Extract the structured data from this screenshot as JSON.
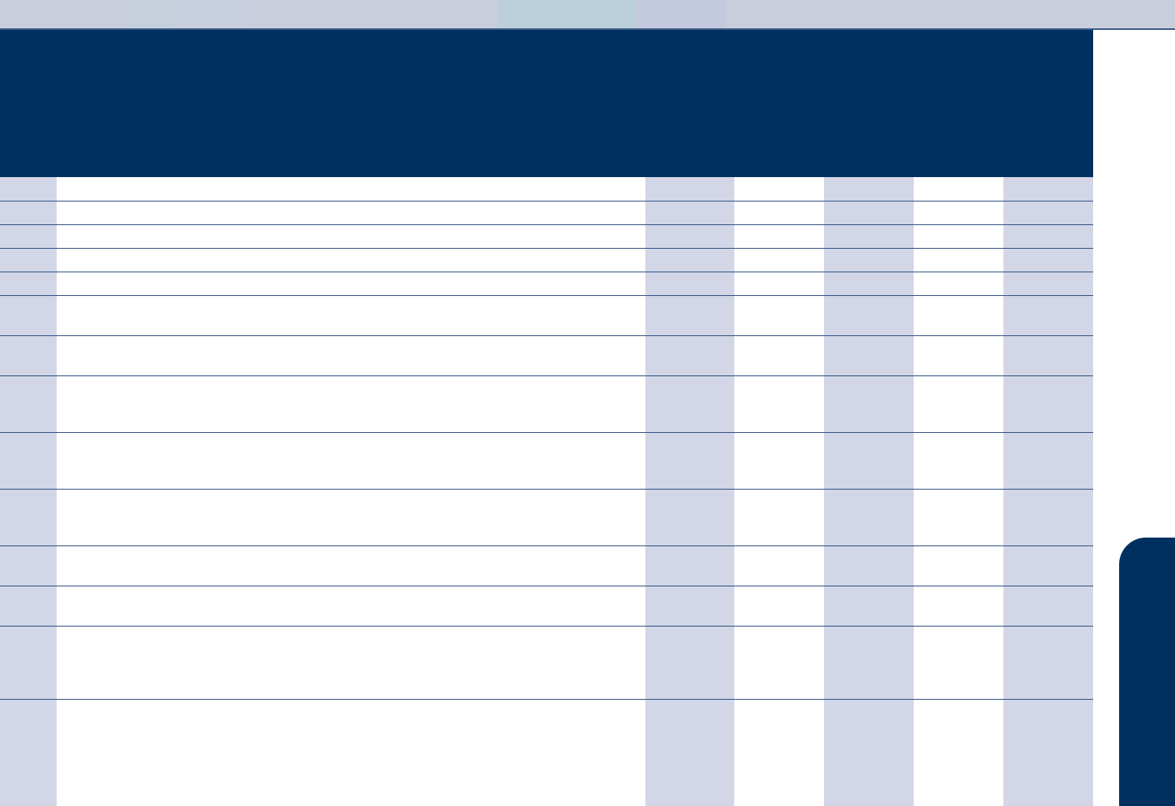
{
  "colors": {
    "header": "#003060",
    "column_shade": "#d2d6e6",
    "top_bar": "#c8cedc",
    "rule": "#2c4f80"
  },
  "table": {
    "columns": [
      "",
      "",
      "",
      "",
      "",
      "",
      ""
    ],
    "rows": [
      [
        "",
        "",
        "",
        "",
        "",
        "",
        ""
      ],
      [
        "",
        "",
        "",
        "",
        "",
        "",
        ""
      ],
      [
        "",
        "",
        "",
        "",
        "",
        "",
        ""
      ],
      [
        "",
        "",
        "",
        "",
        "",
        "",
        ""
      ],
      [
        "",
        "",
        "",
        "",
        "",
        "",
        ""
      ],
      [
        "",
        "",
        "",
        "",
        "",
        "",
        ""
      ],
      [
        "",
        "",
        "",
        "",
        "",
        "",
        ""
      ],
      [
        "",
        "",
        "",
        "",
        "",
        "",
        ""
      ],
      [
        "",
        "",
        "",
        "",
        "",
        "",
        ""
      ],
      [
        "",
        "",
        "",
        "",
        "",
        "",
        ""
      ],
      [
        "",
        "",
        "",
        "",
        "",
        "",
        ""
      ],
      [
        "",
        "",
        "",
        "",
        "",
        "",
        ""
      ],
      [
        "",
        "",
        "",
        "",
        "",
        "",
        ""
      ],
      [
        "",
        "",
        "",
        "",
        "",
        "",
        ""
      ]
    ]
  }
}
